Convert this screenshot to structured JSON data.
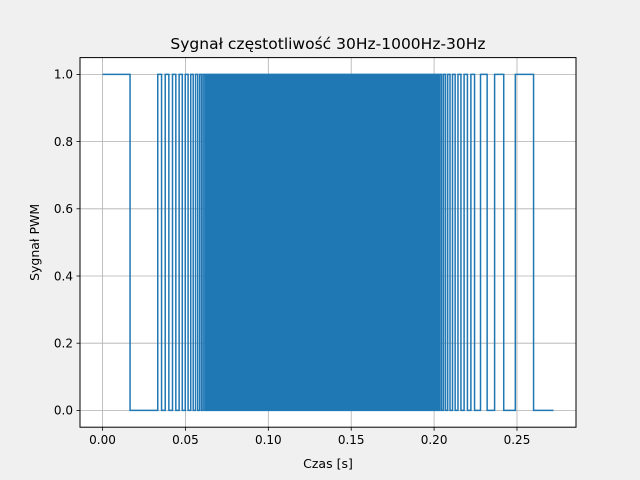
{
  "chart_data": {
    "type": "line",
    "title": "Sygnał częstotliwość 30Hz-1000Hz-30Hz",
    "xlabel": "Czas [s]",
    "ylabel": "Sygnał PWM",
    "xlim": [
      -0.0136,
      0.2856
    ],
    "ylim": [
      -0.05,
      1.05
    ],
    "x_ticks": [
      0.0,
      0.05,
      0.1,
      0.15,
      0.2,
      0.25
    ],
    "x_tick_labels": [
      "0.00",
      "0.05",
      "0.10",
      "0.15",
      "0.20",
      "0.25"
    ],
    "y_ticks": [
      0.0,
      0.2,
      0.4,
      0.6,
      0.8,
      1.0
    ],
    "y_tick_labels": [
      "0.0",
      "0.2",
      "0.4",
      "0.6",
      "0.8",
      "1.0"
    ],
    "grid": true,
    "legend": "none",
    "series": [
      {
        "color": "#1f77b4",
        "signal": "square wave (PWM) switching between 0 and 1; frequency sweeps from 30 Hz up to 1000 Hz and back down to 30 Hz",
        "x_start": 0.0,
        "x_end": 0.272,
        "low": 0,
        "high": 1,
        "edges": [
          0.0,
          0.0166,
          0.0333,
          0.0356,
          0.0378,
          0.04,
          0.0422,
          0.0442,
          0.0462,
          0.0481,
          0.0499,
          0.0516,
          0.0532,
          0.0547,
          0.0561,
          0.0574,
          0.0586,
          0.0597,
          0.0607,
          0.0617,
          0.0626,
          0.0635,
          0.0644,
          0.0652,
          0.066,
          0.0668,
          0.0676,
          0.0684,
          0.0692,
          0.07,
          0.0708,
          0.0716,
          0.0724,
          0.0732,
          0.074,
          0.0748,
          0.0756,
          0.0764,
          0.0772,
          0.078,
          0.0788,
          0.0796,
          0.0804,
          0.0812,
          0.082,
          0.0828,
          0.0836,
          0.0844,
          0.0852,
          0.086,
          0.0868,
          0.0876,
          0.0884,
          0.0892,
          0.09,
          0.0908,
          0.0916,
          0.0924,
          0.0932,
          0.094,
          0.0948,
          0.0956,
          0.0964,
          0.0972,
          0.098,
          0.0988,
          0.0996,
          0.1004,
          0.1012,
          0.102,
          0.1028,
          0.1036,
          0.1044,
          0.1052,
          0.106,
          0.1068,
          0.1076,
          0.1084,
          0.1092,
          0.11,
          0.1108,
          0.1116,
          0.1124,
          0.1132,
          0.114,
          0.1148,
          0.1156,
          0.1164,
          0.1172,
          0.118,
          0.1188,
          0.1196,
          0.1204,
          0.1212,
          0.122,
          0.1228,
          0.1236,
          0.1244,
          0.1252,
          0.126,
          0.1268,
          0.1276,
          0.1284,
          0.1292,
          0.13,
          0.1308,
          0.1316,
          0.1324,
          0.1332,
          0.134,
          0.1348,
          0.1356,
          0.1364,
          0.1372,
          0.138,
          0.1388,
          0.1396,
          0.1404,
          0.1412,
          0.142,
          0.1428,
          0.1436,
          0.1444,
          0.1452,
          0.146,
          0.1468,
          0.1476,
          0.1484,
          0.1492,
          0.15,
          0.1508,
          0.1516,
          0.1524,
          0.1532,
          0.154,
          0.1548,
          0.1556,
          0.1564,
          0.1572,
          0.158,
          0.1588,
          0.1596,
          0.1604,
          0.1612,
          0.162,
          0.1628,
          0.1636,
          0.1644,
          0.1652,
          0.166,
          0.1668,
          0.1676,
          0.1684,
          0.1692,
          0.17,
          0.1708,
          0.1716,
          0.1724,
          0.1732,
          0.174,
          0.1748,
          0.1756,
          0.1764,
          0.1772,
          0.178,
          0.1788,
          0.1796,
          0.1804,
          0.1812,
          0.182,
          0.1828,
          0.1836,
          0.1844,
          0.1852,
          0.186,
          0.1868,
          0.1876,
          0.1884,
          0.1892,
          0.19,
          0.1908,
          0.1916,
          0.1924,
          0.1932,
          0.194,
          0.1948,
          0.1956,
          0.1964,
          0.1972,
          0.198,
          0.1988,
          0.1996,
          0.2004,
          0.2012,
          0.202,
          0.2028,
          0.2036,
          0.2046,
          0.2057,
          0.2069,
          0.2082,
          0.2096,
          0.2111,
          0.2127,
          0.2144,
          0.2162,
          0.2181,
          0.2201,
          0.2222,
          0.2244,
          0.228,
          0.232,
          0.2365,
          0.242,
          0.249,
          0.26,
          0.272
        ]
      }
    ]
  }
}
